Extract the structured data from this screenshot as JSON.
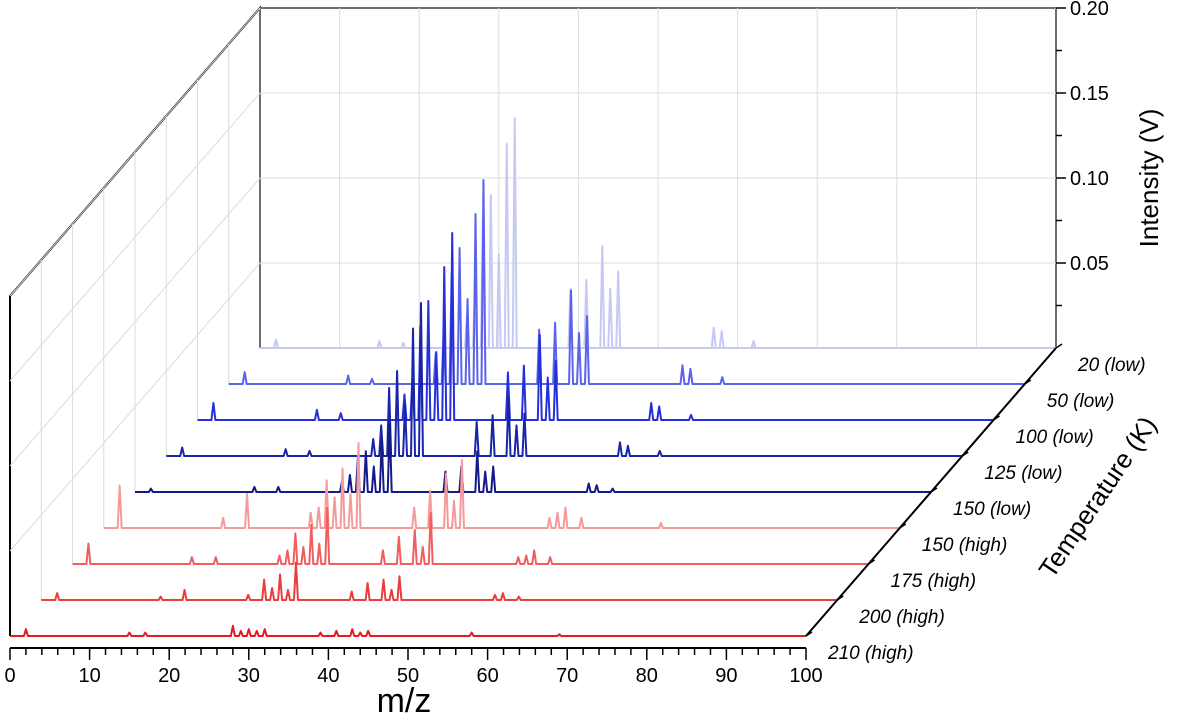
{
  "chart_data": {
    "type": "line",
    "style": "3d-waterfall",
    "xlabel": "m/z",
    "ylabel": "Temperature (K)",
    "zlabel": "Intensity (V)",
    "xlim": [
      0,
      100
    ],
    "zlim": [
      0,
      0.2
    ],
    "x_ticks": [
      0,
      10,
      20,
      30,
      40,
      50,
      60,
      70,
      80,
      90,
      100
    ],
    "z_ticks": [
      0.05,
      0.1,
      0.15,
      0.2
    ],
    "z_tick_labels": [
      "0.05",
      "0.10",
      "0.15",
      "0.20"
    ],
    "series": [
      {
        "name": "210 (high)",
        "color": "#e31b23",
        "peaks": [
          [
            2,
            0.004
          ],
          [
            15,
            0.002
          ],
          [
            17,
            0.002
          ],
          [
            28,
            0.006
          ],
          [
            29,
            0.003
          ],
          [
            30,
            0.004
          ],
          [
            31,
            0.003
          ],
          [
            32,
            0.004
          ],
          [
            39,
            0.002
          ],
          [
            41,
            0.003
          ],
          [
            43,
            0.004
          ],
          [
            44,
            0.002
          ],
          [
            45,
            0.003
          ],
          [
            58,
            0.002
          ],
          [
            69,
            0.001
          ]
        ]
      },
      {
        "name": "200 (high)",
        "color": "#ea3e3e",
        "peaks": [
          [
            2,
            0.004
          ],
          [
            15,
            0.002
          ],
          [
            18,
            0.006
          ],
          [
            26,
            0.003
          ],
          [
            28,
            0.012
          ],
          [
            29,
            0.007
          ],
          [
            30,
            0.015
          ],
          [
            31,
            0.006
          ],
          [
            32,
            0.022
          ],
          [
            39,
            0.005
          ],
          [
            41,
            0.01
          ],
          [
            43,
            0.012
          ],
          [
            44,
            0.006
          ],
          [
            45,
            0.014
          ],
          [
            57,
            0.003
          ],
          [
            58,
            0.004
          ],
          [
            60,
            0.002
          ]
        ]
      },
      {
        "name": "175 (high)",
        "color": "#f05e5e",
        "peaks": [
          [
            2,
            0.012
          ],
          [
            15,
            0.004
          ],
          [
            18,
            0.004
          ],
          [
            26,
            0.005
          ],
          [
            27,
            0.008
          ],
          [
            28,
            0.018
          ],
          [
            29,
            0.01
          ],
          [
            30,
            0.023
          ],
          [
            31,
            0.012
          ],
          [
            32,
            0.033
          ],
          [
            39,
            0.008
          ],
          [
            41,
            0.016
          ],
          [
            43,
            0.02
          ],
          [
            44,
            0.01
          ],
          [
            45,
            0.03
          ],
          [
            56,
            0.004
          ],
          [
            57,
            0.005
          ],
          [
            58,
            0.008
          ],
          [
            60,
            0.004
          ]
        ]
      },
      {
        "name": "150 (high)",
        "color": "#f59a9a",
        "peaks": [
          [
            2,
            0.025
          ],
          [
            15,
            0.006
          ],
          [
            18,
            0.02
          ],
          [
            26,
            0.009
          ],
          [
            27,
            0.012
          ],
          [
            28,
            0.028
          ],
          [
            29,
            0.018
          ],
          [
            30,
            0.035
          ],
          [
            31,
            0.02
          ],
          [
            32,
            0.05
          ],
          [
            39,
            0.012
          ],
          [
            41,
            0.022
          ],
          [
            43,
            0.032
          ],
          [
            44,
            0.016
          ],
          [
            45,
            0.04
          ],
          [
            56,
            0.006
          ],
          [
            57,
            0.009
          ],
          [
            58,
            0.012
          ],
          [
            60,
            0.006
          ],
          [
            70,
            0.003
          ]
        ]
      },
      {
        "name": "150 (low)",
        "color": "#141a88",
        "peaks": [
          [
            2,
            0.002
          ],
          [
            15,
            0.003
          ],
          [
            18,
            0.003
          ],
          [
            26,
            0.006
          ],
          [
            27,
            0.01
          ],
          [
            28,
            0.02
          ],
          [
            29,
            0.024
          ],
          [
            30,
            0.015
          ],
          [
            31,
            0.03
          ],
          [
            32,
            0.04
          ],
          [
            39,
            0.012
          ],
          [
            41,
            0.015
          ],
          [
            43,
            0.024
          ],
          [
            44,
            0.012
          ],
          [
            45,
            0.015
          ],
          [
            57,
            0.005
          ],
          [
            58,
            0.004
          ],
          [
            60,
            0.002
          ]
        ]
      },
      {
        "name": "125 (low)",
        "color": "#1a24a8",
        "peaks": [
          [
            2,
            0.005
          ],
          [
            15,
            0.004
          ],
          [
            18,
            0.003
          ],
          [
            26,
            0.01
          ],
          [
            27,
            0.018
          ],
          [
            28,
            0.04
          ],
          [
            29,
            0.05
          ],
          [
            30,
            0.03
          ],
          [
            31,
            0.075
          ],
          [
            32,
            0.09
          ],
          [
            39,
            0.02
          ],
          [
            41,
            0.024
          ],
          [
            43,
            0.035
          ],
          [
            44,
            0.018
          ],
          [
            45,
            0.025
          ],
          [
            57,
            0.008
          ],
          [
            58,
            0.006
          ],
          [
            62,
            0.003
          ]
        ]
      },
      {
        "name": "100 (low)",
        "color": "#2630d8",
        "peaks": [
          [
            2,
            0.01
          ],
          [
            15,
            0.006
          ],
          [
            18,
            0.004
          ],
          [
            26,
            0.015
          ],
          [
            27,
            0.025
          ],
          [
            28,
            0.055
          ],
          [
            29,
            0.07
          ],
          [
            30,
            0.04
          ],
          [
            31,
            0.09
          ],
          [
            32,
            0.11
          ],
          [
            39,
            0.028
          ],
          [
            41,
            0.032
          ],
          [
            43,
            0.05
          ],
          [
            44,
            0.025
          ],
          [
            45,
            0.035
          ],
          [
            57,
            0.01
          ],
          [
            58,
            0.008
          ],
          [
            62,
            0.003
          ]
        ]
      },
      {
        "name": "50 (low)",
        "color": "#5b63ea",
        "peaks": [
          [
            2,
            0.007
          ],
          [
            15,
            0.005
          ],
          [
            18,
            0.003
          ],
          [
            26,
            0.018
          ],
          [
            27,
            0.03
          ],
          [
            28,
            0.065
          ],
          [
            29,
            0.08
          ],
          [
            30,
            0.05
          ],
          [
            31,
            0.1
          ],
          [
            32,
            0.12
          ],
          [
            39,
            0.032
          ],
          [
            41,
            0.036
          ],
          [
            43,
            0.055
          ],
          [
            44,
            0.03
          ],
          [
            45,
            0.04
          ],
          [
            57,
            0.011
          ],
          [
            58,
            0.009
          ],
          [
            62,
            0.004
          ]
        ]
      },
      {
        "name": "20 (low)",
        "color": "#c6c9f4",
        "peaks": [
          [
            2,
            0.005
          ],
          [
            15,
            0.004
          ],
          [
            18,
            0.003
          ],
          [
            26,
            0.02
          ],
          [
            27,
            0.035
          ],
          [
            28,
            0.075
          ],
          [
            29,
            0.09
          ],
          [
            30,
            0.055
          ],
          [
            31,
            0.12
          ],
          [
            32,
            0.135
          ],
          [
            39,
            0.035
          ],
          [
            41,
            0.04
          ],
          [
            43,
            0.06
          ],
          [
            44,
            0.035
          ],
          [
            45,
            0.045
          ],
          [
            57,
            0.012
          ],
          [
            58,
            0.01
          ],
          [
            62,
            0.004
          ]
        ]
      }
    ]
  }
}
